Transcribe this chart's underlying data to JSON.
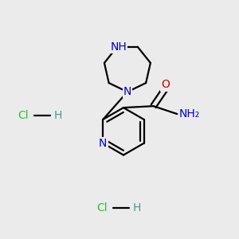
{
  "bg_color": "#ebebeb",
  "atom_colors": {
    "C": "#000000",
    "N": "#0000cc",
    "O": "#cc0000",
    "H": "#4a9a8a",
    "Cl": "#33bb33"
  },
  "bond_color": "#000000",
  "bond_width": 1.6,
  "figsize": [
    3.0,
    3.0
  ],
  "dpi": 100
}
